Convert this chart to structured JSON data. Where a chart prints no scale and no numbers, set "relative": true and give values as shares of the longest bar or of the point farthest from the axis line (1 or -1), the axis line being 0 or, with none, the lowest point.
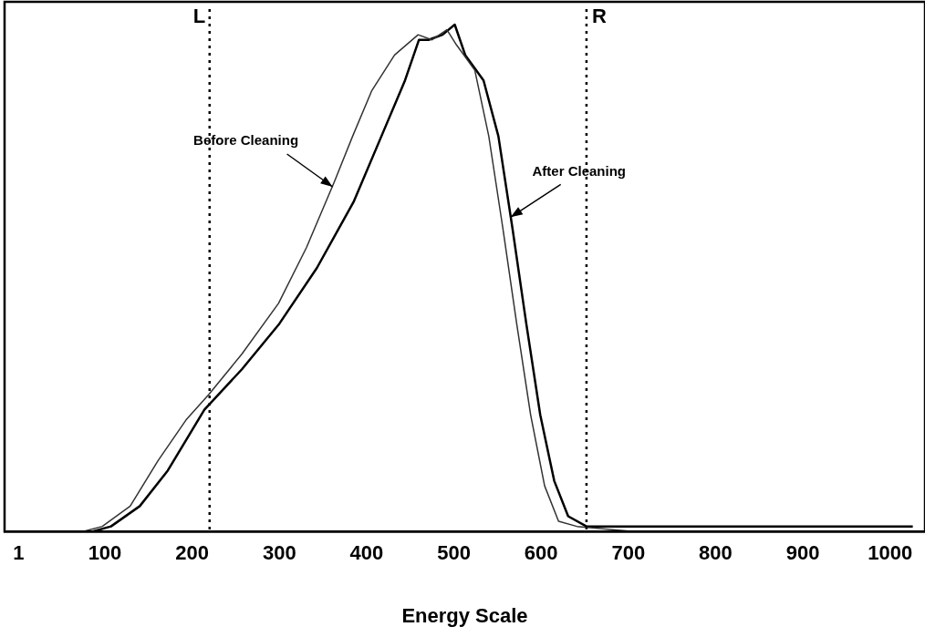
{
  "chart_data": {
    "type": "line",
    "relative": true,
    "xlabel": "Energy Scale",
    "xlim": [
      -15,
      1040
    ],
    "xticks": [
      1,
      100,
      200,
      300,
      400,
      500,
      600,
      700,
      800,
      900,
      1000
    ],
    "grid": false,
    "legend": false,
    "marker": "none",
    "line_style": "solid",
    "series": [
      {
        "color": "#333333",
        "x": [
          75,
          97,
          129,
          161,
          193,
          219,
          257,
          299,
          331,
          363,
          384,
          406,
          432,
          459,
          475,
          492,
          503,
          524,
          540,
          556,
          572,
          588,
          604,
          620,
          641,
          706,
          1026
        ],
        "values": [
          0,
          0.01,
          0.05,
          0.14,
          0.22,
          0.27,
          0.35,
          0.45,
          0.56,
          0.69,
          0.78,
          0.87,
          0.94,
          0.98,
          0.97,
          0.99,
          0.96,
          0.91,
          0.78,
          0.6,
          0.41,
          0.23,
          0.09,
          0.02,
          0.01,
          0,
          0
        ]
      },
      {
        "color": "#000000",
        "x": [
          86,
          107,
          140,
          172,
          214,
          257,
          300,
          343,
          385,
          417,
          444,
          460,
          471,
          487,
          501,
          513,
          534,
          551,
          567,
          583,
          599,
          615,
          631,
          652,
          706,
          1026
        ],
        "values": [
          0,
          0.01,
          0.05,
          0.12,
          0.24,
          0.32,
          0.41,
          0.52,
          0.65,
          0.78,
          0.89,
          0.97,
          0.97,
          0.98,
          1,
          0.94,
          0.89,
          0.78,
          0.6,
          0.41,
          0.23,
          0.1,
          0.03,
          0.01,
          0.01,
          0.01
        ]
      }
    ],
    "ref_lines": [
      {
        "axis": "x",
        "value": 220,
        "label": "L",
        "line_style": "dotted"
      },
      {
        "axis": "x",
        "value": 652,
        "label": "R",
        "line_style": "dotted"
      }
    ],
    "annotations": [
      {
        "text": "Before Cleaning",
        "x": 361,
        "y": 0.68
      },
      {
        "text": "After Cleaning",
        "x": 565,
        "y": 0.62
      }
    ]
  }
}
